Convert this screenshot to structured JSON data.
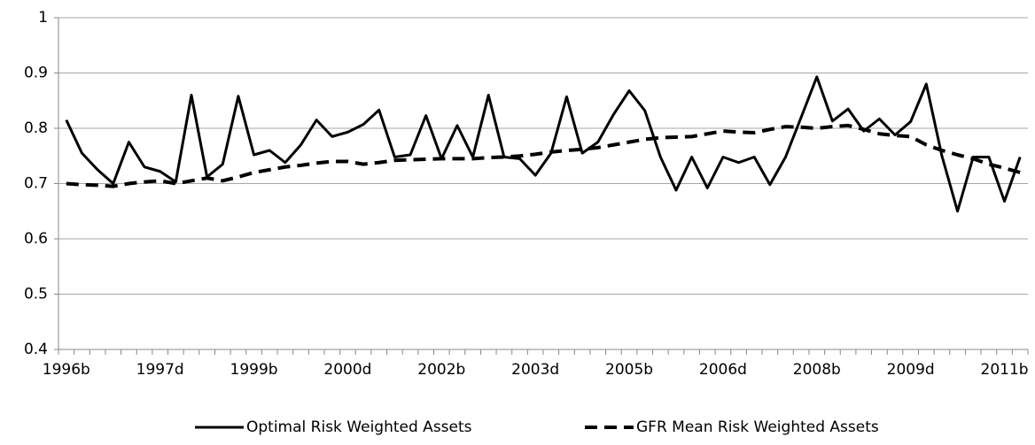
{
  "chart_data": {
    "type": "line",
    "categories": [
      "1996b",
      null,
      null,
      null,
      null,
      null,
      "1997d",
      null,
      null,
      null,
      null,
      null,
      "1999b",
      null,
      null,
      null,
      null,
      null,
      "2000d",
      null,
      null,
      null,
      null,
      null,
      "2002b",
      null,
      null,
      null,
      null,
      null,
      "2003d",
      null,
      null,
      null,
      null,
      null,
      "2005b",
      null,
      null,
      null,
      null,
      null,
      "2006d",
      null,
      null,
      null,
      null,
      null,
      "2008b",
      null,
      null,
      null,
      null,
      null,
      "2009d",
      null,
      null,
      null,
      null,
      null,
      "2011b",
      null
    ],
    "series": [
      {
        "name": "Optimal Risk Weighted Assets",
        "color": "#000000",
        "dash": false,
        "values": [
          0.815,
          0.755,
          0.725,
          0.7,
          0.775,
          0.73,
          0.722,
          0.703,
          0.86,
          0.712,
          0.735,
          0.858,
          0.752,
          0.76,
          0.738,
          0.77,
          0.815,
          0.785,
          0.793,
          0.807,
          0.833,
          0.748,
          0.752,
          0.823,
          0.745,
          0.805,
          0.748,
          0.86,
          0.748,
          0.745,
          0.715,
          0.755,
          0.857,
          0.755,
          0.775,
          0.825,
          0.868,
          0.832,
          0.748,
          0.688,
          0.748,
          0.692,
          0.748,
          0.738,
          0.748,
          0.698,
          0.748,
          0.82,
          0.893,
          0.813,
          0.835,
          0.795,
          0.817,
          0.788,
          0.812,
          0.88,
          0.75,
          0.65,
          0.748,
          0.748,
          0.668,
          0.748
        ]
      },
      {
        "name": "GFR Mean Risk Weighted Assets",
        "color": "#000000",
        "dash": true,
        "values": [
          0.7,
          0.698,
          0.697,
          0.695,
          0.7,
          0.703,
          0.705,
          0.7,
          0.705,
          0.71,
          0.705,
          0.712,
          0.72,
          0.725,
          0.73,
          0.733,
          0.737,
          0.74,
          0.74,
          0.735,
          0.738,
          0.742,
          0.743,
          0.744,
          0.745,
          0.745,
          0.745,
          0.747,
          0.748,
          0.75,
          0.753,
          0.757,
          0.76,
          0.762,
          0.765,
          0.77,
          0.775,
          0.78,
          0.783,
          0.784,
          0.785,
          0.79,
          0.795,
          0.793,
          0.792,
          0.798,
          0.803,
          0.802,
          0.8,
          0.803,
          0.805,
          0.798,
          0.79,
          0.787,
          0.785,
          0.77,
          0.76,
          0.752,
          0.745,
          0.735,
          0.728,
          0.72
        ]
      }
    ],
    "ylim": [
      0.4,
      1
    ],
    "yticks": [
      0.4,
      0.5,
      0.6,
      0.7,
      0.8,
      0.9,
      1
    ],
    "grid": true,
    "legend": "bottom"
  }
}
